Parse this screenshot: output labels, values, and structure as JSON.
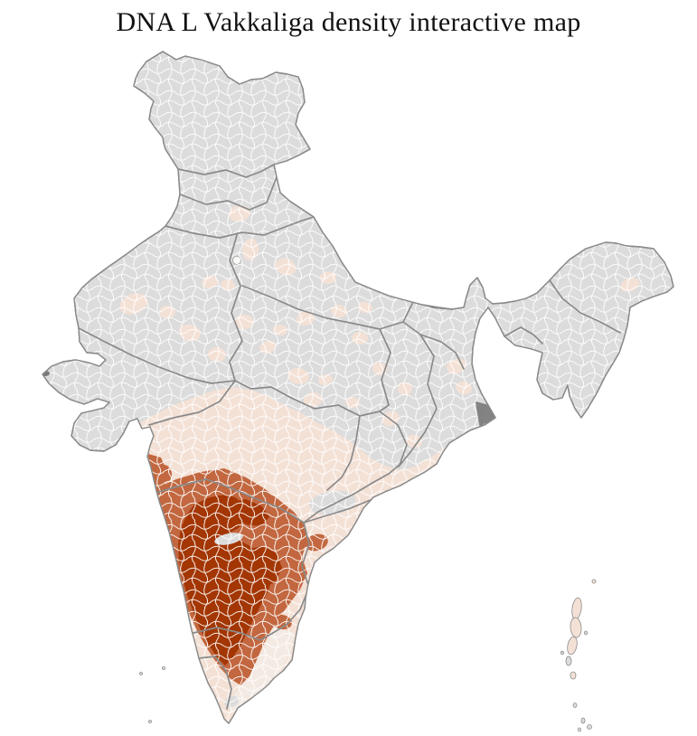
{
  "page": {
    "title": "DNA L Vakkaliga density interactive map"
  },
  "map": {
    "region": "India district choropleth",
    "colors": {
      "no_data": "#dcdcdc",
      "density_low": "#f4e1d6",
      "density_pale": "#f3eae3",
      "density_medium": "#c2673f",
      "density_high": "#a33603",
      "state_border": "#8a8a8a",
      "district_border": "#ffffff",
      "outline": "#8a8a8a",
      "delta_shade": "#787878",
      "highlight_white": "#fbfaf9"
    },
    "density_classes": [
      {
        "key": "no_data",
        "color": "#dcdcdc"
      },
      {
        "key": "density_low",
        "color": "#f4e1d6"
      },
      {
        "key": "density_medium",
        "color": "#c2673f"
      },
      {
        "key": "density_high",
        "color": "#a33603"
      }
    ],
    "patches": {
      "low": [
        [
          148,
          336,
          16,
          11,
          -20
        ],
        [
          210,
          368,
          12,
          9,
          15
        ],
        [
          240,
          392,
          10,
          8,
          0
        ],
        [
          265,
          236,
          12,
          9,
          -10
        ],
        [
          277,
          276,
          9,
          12,
          5
        ],
        [
          316,
          295,
          12,
          9,
          20
        ],
        [
          338,
          352,
          10,
          8,
          -15
        ],
        [
          375,
          344,
          9,
          7,
          10
        ],
        [
          270,
          356,
          11,
          8,
          0
        ],
        [
          296,
          384,
          9,
          7,
          -25
        ],
        [
          330,
          416,
          12,
          9,
          10
        ],
        [
          292,
          470,
          11,
          8,
          0
        ],
        [
          257,
          477,
          9,
          7,
          20
        ],
        [
          346,
          442,
          10,
          8,
          -10
        ],
        [
          398,
          374,
          9,
          7,
          0
        ],
        [
          420,
          408,
          8,
          7,
          15
        ],
        [
          432,
          463,
          10,
          8,
          -20
        ],
        [
          458,
          488,
          9,
          7,
          10
        ],
        [
          505,
          405,
          11,
          8,
          -15
        ],
        [
          513,
          429,
          9,
          7,
          10
        ],
        [
          697,
          315,
          11,
          7,
          -20
        ],
        [
          363,
          307,
          9,
          7,
          0
        ],
        [
          404,
          340,
          8,
          6,
          15
        ],
        [
          448,
          430,
          8,
          7,
          -10
        ],
        [
          232,
          312,
          9,
          7,
          -15
        ],
        [
          185,
          345,
          9,
          7,
          0
        ],
        [
          252,
          315,
          8,
          6,
          10
        ],
        [
          310,
          365,
          8,
          6,
          0
        ],
        [
          360,
          420,
          8,
          6,
          -15
        ],
        [
          390,
          445,
          8,
          6,
          10
        ]
      ],
      "medium": [
        [
          350,
          600,
          13,
          9,
          -15
        ],
        [
          312,
          688,
          11,
          8,
          10
        ],
        [
          296,
          560,
          10,
          7,
          0
        ],
        [
          182,
          524,
          8,
          10,
          -10
        ]
      ],
      "no_data": [
        [
          368,
          556,
          26,
          13,
          -8
        ],
        [
          253,
          596,
          16,
          6,
          -12
        ],
        [
          256,
          776,
          8,
          6,
          -20
        ],
        [
          228,
          766,
          7,
          5,
          0
        ]
      ]
    },
    "islands": [
      [
        657,
        643,
        2,
        2,
        0,
        "density_low"
      ],
      [
        638,
        673,
        5,
        12,
        8,
        "density_low"
      ],
      [
        637,
        694,
        6,
        11,
        -5,
        "density_low"
      ],
      [
        633,
        714,
        5,
        10,
        12,
        "density_low"
      ],
      [
        629,
        731,
        3,
        5,
        0,
        "no_data"
      ],
      [
        622,
        722,
        1.7,
        1.7,
        0,
        "no_data"
      ],
      [
        648,
        700,
        1.7,
        2,
        0,
        "no_data"
      ],
      [
        634,
        747,
        3,
        4,
        0,
        "density_low"
      ],
      [
        636,
        780,
        2,
        2.5,
        0,
        "no_data"
      ],
      [
        645,
        797,
        2,
        3,
        0,
        "no_data"
      ],
      [
        652,
        804,
        2.5,
        2.5,
        0,
        "no_data"
      ],
      [
        641,
        807,
        1.5,
        2,
        0,
        "no_data"
      ],
      [
        156,
        745,
        1.5,
        1.5,
        0,
        "no_data"
      ],
      [
        181,
        739,
        1.5,
        1.5,
        0,
        "no_data"
      ],
      [
        166,
        798,
        1.5,
        1.5,
        0,
        "no_data"
      ]
    ]
  }
}
